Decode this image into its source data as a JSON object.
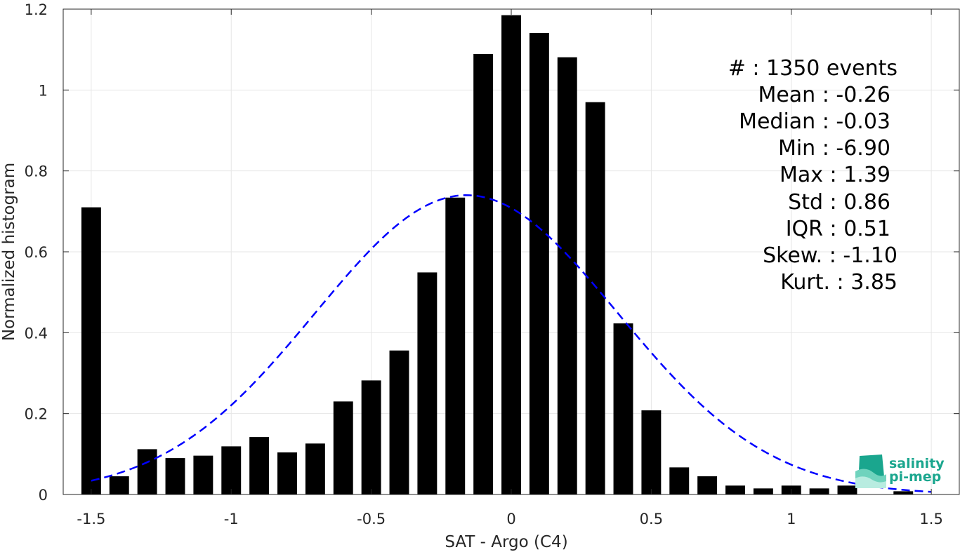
{
  "chart_data": {
    "type": "bar",
    "xlabel": "SAT - Argo (C4)",
    "ylabel": "Normalized histogram",
    "xlim": [
      -1.6,
      1.6
    ],
    "ylim": [
      0,
      1.2
    ],
    "grid": true,
    "xticks": [
      -1.5,
      -1,
      -0.5,
      0,
      0.5,
      1,
      1.5
    ],
    "xtick_labels": [
      "-1.5",
      "-1",
      "-0.5",
      "0",
      "0.5",
      "1",
      "1.5"
    ],
    "yticks": [
      0,
      0.2,
      0.4,
      0.6,
      0.8,
      1,
      1.2
    ],
    "ytick_labels": [
      "0",
      "0.2",
      "0.4",
      "0.6",
      "0.8",
      "1",
      "1.2"
    ],
    "bar_width": 0.07,
    "bars": [
      {
        "x": -1.5,
        "y": 0.71
      },
      {
        "x": -1.4,
        "y": 0.045
      },
      {
        "x": -1.3,
        "y": 0.112
      },
      {
        "x": -1.2,
        "y": 0.09
      },
      {
        "x": -1.1,
        "y": 0.096
      },
      {
        "x": -1.0,
        "y": 0.119
      },
      {
        "x": -0.9,
        "y": 0.142
      },
      {
        "x": -0.8,
        "y": 0.104
      },
      {
        "x": -0.7,
        "y": 0.126
      },
      {
        "x": -0.6,
        "y": 0.23
      },
      {
        "x": -0.5,
        "y": 0.282
      },
      {
        "x": -0.4,
        "y": 0.356
      },
      {
        "x": -0.3,
        "y": 0.549
      },
      {
        "x": -0.2,
        "y": 0.734
      },
      {
        "x": -0.1,
        "y": 1.089
      },
      {
        "x": 0.0,
        "y": 1.185
      },
      {
        "x": 0.1,
        "y": 1.141
      },
      {
        "x": 0.2,
        "y": 1.081
      },
      {
        "x": 0.3,
        "y": 0.97
      },
      {
        "x": 0.4,
        "y": 0.423
      },
      {
        "x": 0.5,
        "y": 0.208
      },
      {
        "x": 0.6,
        "y": 0.067
      },
      {
        "x": 0.7,
        "y": 0.045
      },
      {
        "x": 0.8,
        "y": 0.022
      },
      {
        "x": 0.9,
        "y": 0.015
      },
      {
        "x": 1.0,
        "y": 0.022
      },
      {
        "x": 1.1,
        "y": 0.015
      },
      {
        "x": 1.2,
        "y": 0.022
      },
      {
        "x": 1.4,
        "y": 0.008
      }
    ],
    "fit_curve": {
      "style": "dashed",
      "color": "#0000ff",
      "mean": -0.16,
      "std": 0.54,
      "peak": 0.74,
      "x_range": [
        -1.5,
        1.5
      ]
    },
    "bar_color": "#000000"
  },
  "stats": [
    "#  : 1350 events",
    "Mean : -0.26",
    "Median : -0.03",
    "Min : -6.90",
    "Max : 1.39",
    "Std : 0.86",
    "IQR : 0.51",
    "Skew. : -1.10",
    "Kurt. : 3.85"
  ],
  "logo": {
    "line1": "salinity",
    "line2": "pi-mep",
    "color": "#1aa68e"
  }
}
